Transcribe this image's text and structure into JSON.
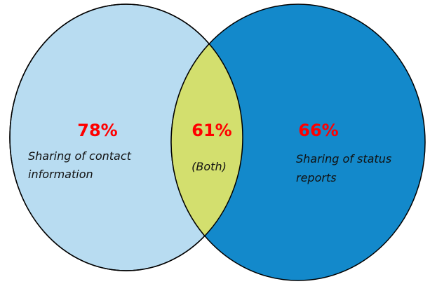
{
  "sets": [
    {
      "value": "78%",
      "label": [
        "Sharing of contact",
        "information"
      ]
    },
    {
      "value": "66%",
      "label": [
        "Sharing of status",
        "reports"
      ]
    }
  ],
  "intersection": {
    "value": "61%",
    "label": "(Both)"
  }
}
